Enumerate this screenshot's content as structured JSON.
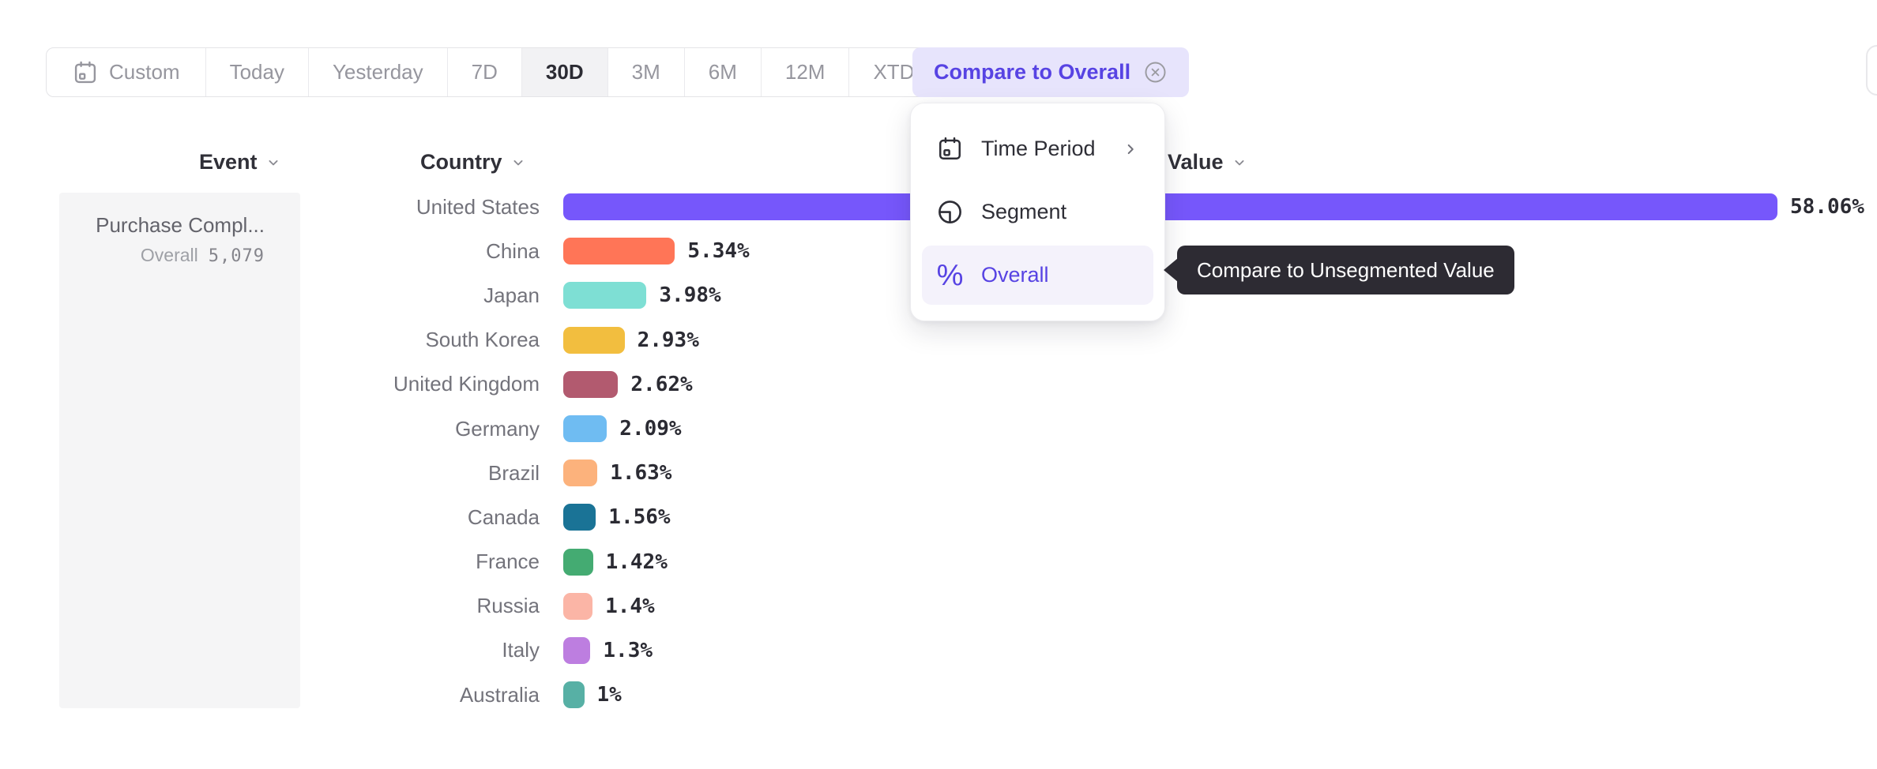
{
  "toolbar": {
    "buttons": [
      {
        "label": "Custom",
        "icon": "calendar-icon",
        "selected": false
      },
      {
        "label": "Today",
        "selected": false
      },
      {
        "label": "Yesterday",
        "selected": false
      },
      {
        "label": "7D",
        "selected": false
      },
      {
        "label": "30D",
        "selected": true
      },
      {
        "label": "3M",
        "selected": false
      },
      {
        "label": "6M",
        "selected": false
      },
      {
        "label": "12M",
        "selected": false
      },
      {
        "label": "XTD",
        "chevron": true,
        "selected": false
      }
    ]
  },
  "compare_button": {
    "label": "Compare to Overall",
    "close_icon": "circled-x-icon"
  },
  "columns": {
    "event_label": "Event",
    "country_label": "Country",
    "value_label": "Value"
  },
  "event_card": {
    "event_name": "Purchase Compl...",
    "overall_label": "Overall",
    "overall_value": "5,079"
  },
  "dropdown": {
    "items": [
      {
        "label": "Time Period",
        "icon": "calendar-icon",
        "submenu": true,
        "selected": false
      },
      {
        "label": "Segment",
        "icon": "segment-icon",
        "selected": false
      },
      {
        "label": "Overall",
        "icon": "percent-icon",
        "selected": true
      }
    ]
  },
  "tooltip": {
    "text": "Compare to Unsegmented Value"
  },
  "chart_data": {
    "type": "bar",
    "orientation": "horizontal",
    "title": "",
    "xlabel": "Value",
    "ylabel": "Country",
    "categories": [
      "United States",
      "China",
      "Japan",
      "South Korea",
      "United Kingdom",
      "Germany",
      "Brazil",
      "Canada",
      "France",
      "Russia",
      "Italy",
      "Australia"
    ],
    "values": [
      58.06,
      5.34,
      3.98,
      2.93,
      2.62,
      2.09,
      1.63,
      1.56,
      1.42,
      1.4,
      1.3,
      1
    ],
    "value_labels": [
      "58.06%",
      "5.34%",
      "3.98%",
      "2.93%",
      "2.62%",
      "2.09%",
      "1.63%",
      "1.56%",
      "1.42%",
      "1.4%",
      "1.3%",
      "1%"
    ],
    "colors": [
      "#7657FB",
      "#FF7557",
      "#7EDFD4",
      "#F2BE3F",
      "#B25A6F",
      "#6FBCF2",
      "#FCB27C",
      "#1A7396",
      "#44AB72",
      "#FBB5A6",
      "#BD7EE0",
      "#57B0A5"
    ],
    "xlim": [
      0,
      58.06
    ],
    "unit": "%",
    "grid": false,
    "legend": false
  },
  "theme": {
    "accent_purple": "#5743E3",
    "compare_pill_bg": "#E7E4FC",
    "selected_menu_bg": "#F4F2FB",
    "tooltip_bg": "#2D2B33",
    "selected_time_bg": "#F2F2F4"
  }
}
